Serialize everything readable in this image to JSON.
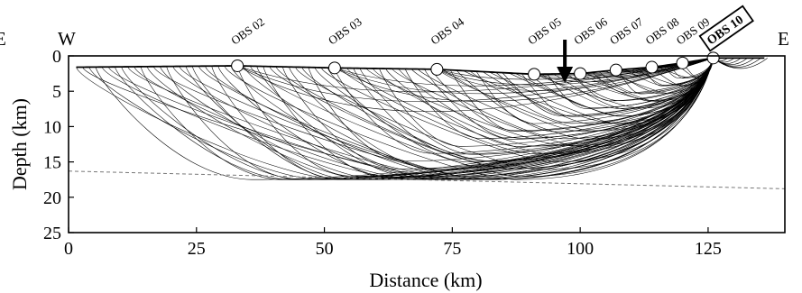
{
  "figure": {
    "west_label": "W",
    "east_label": "E",
    "left_edge_label": "E",
    "xlabel": "Distance (km)",
    "ylabel": "Depth (km)",
    "xlim": [
      0,
      140
    ],
    "ylim": [
      0,
      25
    ],
    "x_ticks": [
      "0",
      "25",
      "50",
      "75",
      "100",
      "125"
    ],
    "y_ticks": [
      "0",
      "5",
      "10",
      "15",
      "20",
      "25"
    ],
    "x_tick_values": [
      0,
      25,
      50,
      75,
      100,
      125
    ],
    "y_tick_values": [
      0,
      5,
      10,
      15,
      20,
      25
    ],
    "source_obs": "OBS 10",
    "source_position_km": 126,
    "stations": [
      {
        "name": "OBS 02",
        "x": 33,
        "depth": 1.4
      },
      {
        "name": "OBS 03",
        "x": 52,
        "depth": 1.7
      },
      {
        "name": "OBS 04",
        "x": 72,
        "depth": 1.9
      },
      {
        "name": "OBS 05",
        "x": 91,
        "depth": 2.6
      },
      {
        "name": "OBS 06",
        "x": 100,
        "depth": 2.5
      },
      {
        "name": "OBS 07",
        "x": 107,
        "depth": 2.0
      },
      {
        "name": "OBS 08",
        "x": 114,
        "depth": 1.6
      },
      {
        "name": "OBS 09",
        "x": 120,
        "depth": 1.0
      },
      {
        "name": "OBS 10",
        "x": 126,
        "depth": 0.3
      }
    ],
    "arrow_x_km": 97,
    "moho_line": {
      "x": [
        0,
        140
      ],
      "depth": [
        16.3,
        18.8
      ]
    },
    "colors": {
      "rays": "#000000",
      "moho": "#777777",
      "stations": "#ffffff"
    }
  }
}
